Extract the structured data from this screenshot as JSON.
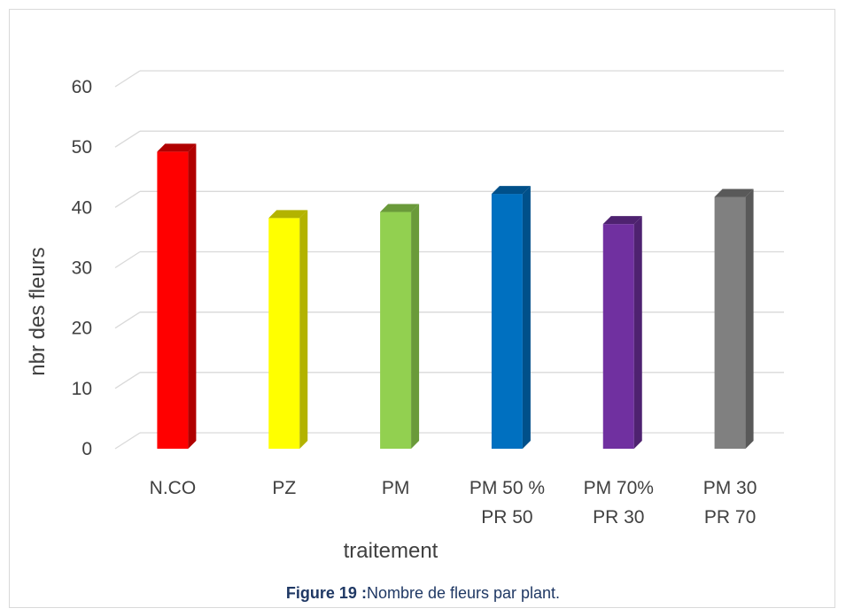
{
  "chart_data": {
    "type": "bar",
    "style": "3d-column",
    "categories": [
      [
        "N.CO"
      ],
      [
        "PZ"
      ],
      [
        "PM"
      ],
      [
        "PM 50 %",
        "PR 50"
      ],
      [
        "PM 70%",
        "PR 30"
      ],
      [
        "PM 30",
        "PR 70"
      ]
    ],
    "values": [
      51,
      40,
      41,
      44,
      39,
      43.5
    ],
    "colors": [
      "#ff0000",
      "#ffff00",
      "#92d050",
      "#0070c0",
      "#7030a0",
      "#808080"
    ],
    "side_colors": [
      "#b00000",
      "#b3b300",
      "#6a9a3a",
      "#00508a",
      "#4e2270",
      "#595959"
    ],
    "xlabel": "traitement",
    "ylabel": "nbr des fleurs",
    "ylim": [
      0,
      60
    ],
    "yticks": [
      "0",
      "10",
      "20",
      "30",
      "40",
      "50",
      "60"
    ],
    "grid": true,
    "gridline_color": "#d9d9d9"
  },
  "caption": {
    "label": "Figure 19 :",
    "text": "Nombre de fleurs par plant."
  }
}
